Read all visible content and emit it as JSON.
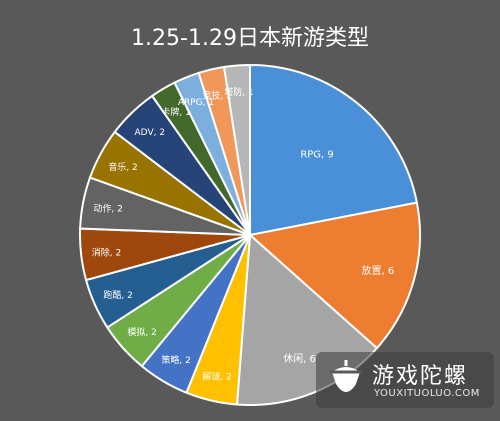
{
  "chart_data": {
    "type": "pie",
    "title": "1.25-1.29日本新游类型",
    "slices": [
      {
        "label": "RPG",
        "value": 9,
        "color": "#4a90d9"
      },
      {
        "label": "放置",
        "value": 6,
        "color": "#ed7d31"
      },
      {
        "label": "休闲",
        "value": 6,
        "color": "#a5a5a5"
      },
      {
        "label": "解谜",
        "value": 2,
        "color": "#ffc000"
      },
      {
        "label": "策略",
        "value": 2,
        "color": "#4472c4"
      },
      {
        "label": "模拟",
        "value": 2,
        "color": "#70ad47"
      },
      {
        "label": "跑酷",
        "value": 2,
        "color": "#255e91"
      },
      {
        "label": "消除",
        "value": 2,
        "color": "#9e480e"
      },
      {
        "label": "动作",
        "value": 2,
        "color": "#636363"
      },
      {
        "label": "音乐",
        "value": 2,
        "color": "#997300"
      },
      {
        "label": "ADV",
        "value": 2,
        "color": "#264478"
      },
      {
        "label": "卡牌",
        "value": 1,
        "color": "#43682b"
      },
      {
        "label": "ARPG",
        "value": 1,
        "color": "#7cafdd"
      },
      {
        "label": "竞技",
        "value": 1,
        "color": "#f1975a"
      },
      {
        "label": "塔防",
        "value": 1,
        "color": "#b7b7b7"
      }
    ],
    "label_format": "{label}, {value}",
    "legend": "none"
  },
  "watermark": {
    "name_cn": "游戏陀螺",
    "url": "YOUXITUOLUO.COM"
  }
}
